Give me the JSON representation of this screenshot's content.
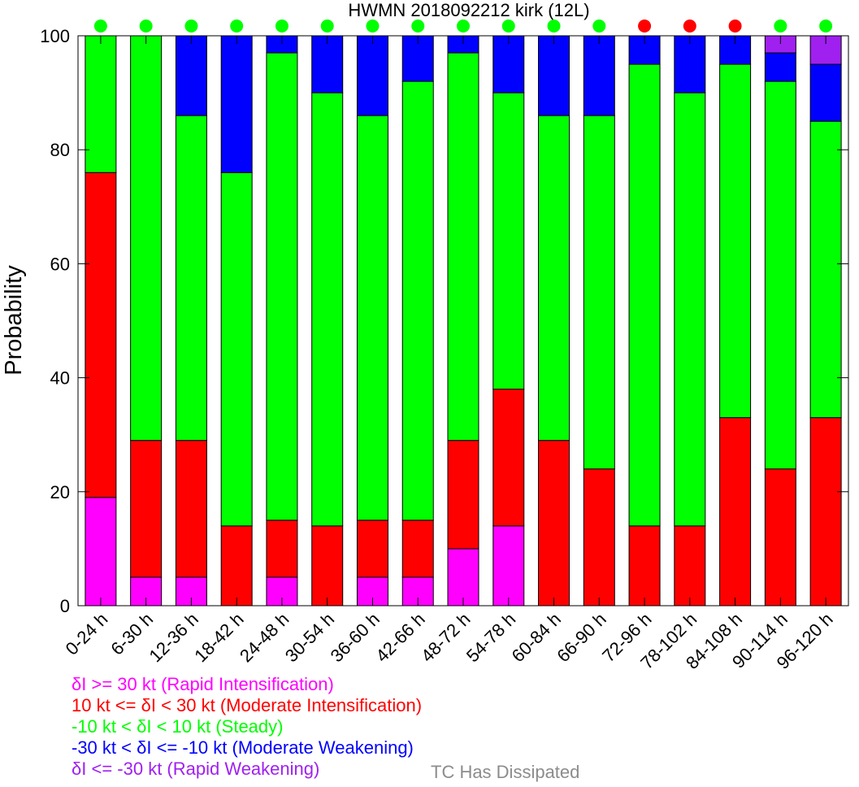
{
  "chart_data": {
    "type": "bar",
    "stacked": true,
    "title": "HWMN 2018092212 kirk (12L)",
    "xlabel": "",
    "ylabel": "Probability",
    "ylim": [
      0,
      100
    ],
    "yticks": [
      0,
      20,
      40,
      60,
      80,
      100
    ],
    "grid": false,
    "categories": [
      "0-24 h",
      "6-30 h",
      "12-36 h",
      "18-42 h",
      "24-48 h",
      "30-54 h",
      "36-60 h",
      "42-66 h",
      "48-72 h",
      "54-78 h",
      "60-84 h",
      "66-90 h",
      "72-96 h",
      "78-102 h",
      "84-108 h",
      "90-114 h",
      "96-120 h"
    ],
    "series": [
      {
        "name": "δI >= 30 kt (Rapid Intensification)",
        "color": "#ff00ff",
        "values": [
          19,
          5,
          5,
          0,
          5,
          0,
          5,
          5,
          10,
          14,
          0,
          0,
          0,
          0,
          0,
          0,
          0
        ]
      },
      {
        "name": "10 kt <= δI < 30 kt (Moderate Intensification)",
        "color": "#ff0000",
        "values": [
          57,
          24,
          24,
          14,
          10,
          14,
          10,
          10,
          19,
          24,
          29,
          24,
          14,
          14,
          33,
          24,
          33
        ]
      },
      {
        "name": "-10 kt < δI < 10 kt (Steady)",
        "color": "#00ff00",
        "values": [
          24,
          71,
          57,
          62,
          82,
          76,
          71,
          77,
          68,
          52,
          57,
          62,
          81,
          76,
          62,
          68,
          52
        ]
      },
      {
        "name": "-30 kt < δI <= -10 kt (Moderate Weakening)",
        "color": "#0000ff",
        "values": [
          0,
          0,
          14,
          24,
          3,
          10,
          14,
          8,
          3,
          10,
          14,
          14,
          5,
          10,
          5,
          5,
          10
        ]
      },
      {
        "name": "δI <= -30 kt (Rapid Weakening)",
        "color": "#a020f0",
        "values": [
          0,
          0,
          0,
          0,
          0,
          0,
          0,
          0,
          0,
          0,
          0,
          0,
          0,
          0,
          0,
          3,
          5
        ]
      }
    ],
    "category_markers": [
      "#00ff00",
      "#00ff00",
      "#00ff00",
      "#00ff00",
      "#00ff00",
      "#00ff00",
      "#00ff00",
      "#00ff00",
      "#00ff00",
      "#00ff00",
      "#00ff00",
      "#00ff00",
      "#ff0000",
      "#ff0000",
      "#ff0000",
      "#00ff00",
      "#00ff00"
    ],
    "dissipated_label": "TC Has Dissipated",
    "dissipated_color": "#8c8c8c",
    "legend_placement": "bottom-left"
  }
}
